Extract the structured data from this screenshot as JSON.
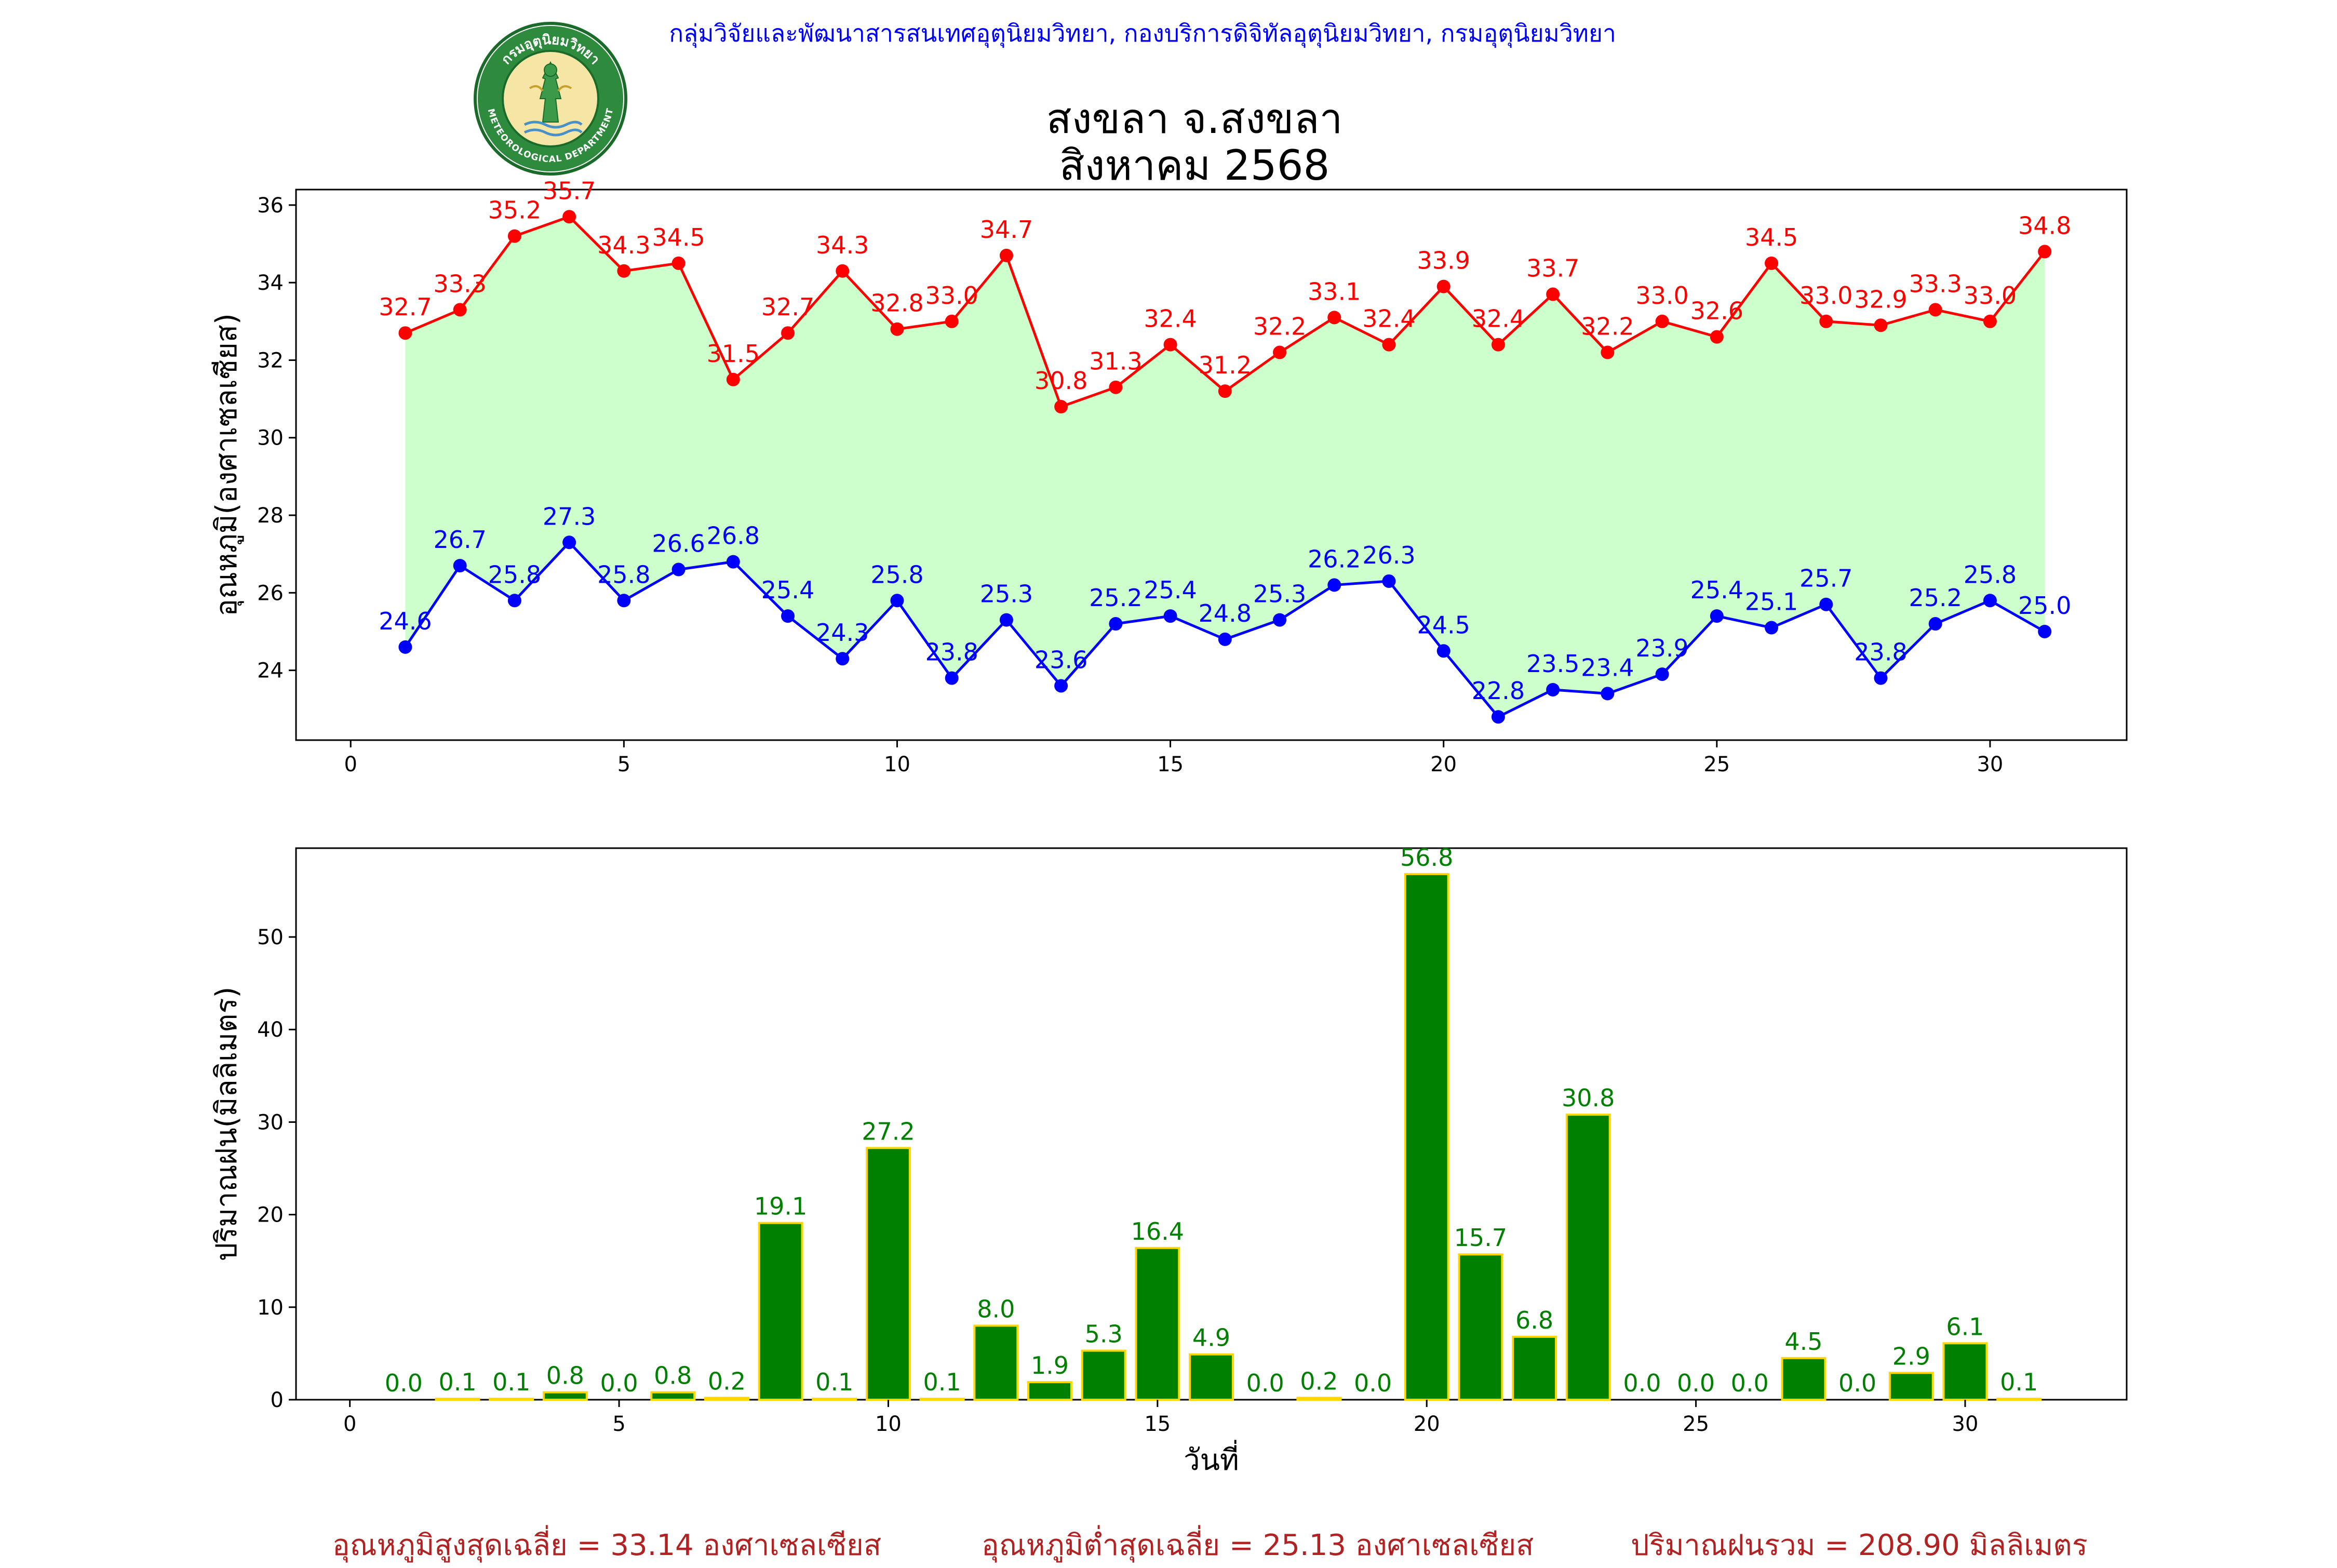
{
  "header": {
    "org": "กลุ่มวิจัยและพัฒนาสารสนเทศอุตุนิยมวิทยา, กองบริการดิจิทัลอุตุนิยมวิทยา, กรมอุตุนิยมวิทยา",
    "logo_text_top": "กรมอุตุนิยมวิทยา",
    "logo_text_bottom": "METEOROLOGICAL DEPARTMENT"
  },
  "title": {
    "line1": "สงขลา จ.สงขลา",
    "line2": "สิงหาคม 2568"
  },
  "colors": {
    "max_line": "#ff0000",
    "min_line": "#0000ff",
    "fill": "#ccffcc",
    "bar_fill": "#008000",
    "bar_edge": "#ffd700",
    "bar_label": "#008000",
    "footer": "#b22222"
  },
  "chart_data": [
    {
      "type": "line",
      "ylabel": "อุณหภูมิ(องศาเซลเซียส)",
      "xlim": [
        -1,
        32.5
      ],
      "ylim": [
        22.2,
        36.4
      ],
      "x_ticks": [
        0,
        5,
        10,
        15,
        20,
        25,
        30
      ],
      "y_ticks": [
        24,
        26,
        28,
        30,
        32,
        34,
        36
      ],
      "x": [
        1,
        2,
        3,
        4,
        5,
        6,
        7,
        8,
        9,
        10,
        11,
        12,
        13,
        14,
        15,
        16,
        17,
        18,
        19,
        20,
        21,
        22,
        23,
        24,
        25,
        26,
        27,
        28,
        29,
        30,
        31
      ],
      "series": [
        {
          "values": [
            32.7,
            33.3,
            35.2,
            35.7,
            34.3,
            34.5,
            31.5,
            32.7,
            34.3,
            32.8,
            33.0,
            34.7,
            30.8,
            31.3,
            32.4,
            31.2,
            32.2,
            33.1,
            32.4,
            33.9,
            32.4,
            33.7,
            32.2,
            33.0,
            32.6,
            34.5,
            33.0,
            32.9,
            33.3,
            33.0,
            34.8
          ]
        },
        {
          "values": [
            24.6,
            26.7,
            25.8,
            27.3,
            25.8,
            26.6,
            26.8,
            25.4,
            24.3,
            25.8,
            23.8,
            25.3,
            23.6,
            25.2,
            25.4,
            24.8,
            25.3,
            26.2,
            26.3,
            24.5,
            22.8,
            23.5,
            23.4,
            23.9,
            25.4,
            25.1,
            25.7,
            23.8,
            25.2,
            25.8,
            25.0
          ]
        }
      ]
    },
    {
      "type": "bar",
      "ylabel": "ปริมาณฝน(มิลลิเมตร)",
      "xlabel": "วันที่",
      "xlim": [
        -1,
        33
      ],
      "ylim": [
        0,
        59.6
      ],
      "x_ticks": [
        0,
        5,
        10,
        15,
        20,
        25,
        30
      ],
      "y_ticks": [
        0,
        10,
        20,
        30,
        40,
        50
      ],
      "x": [
        1,
        2,
        3,
        4,
        5,
        6,
        7,
        8,
        9,
        10,
        11,
        12,
        13,
        14,
        15,
        16,
        17,
        18,
        19,
        20,
        21,
        22,
        23,
        24,
        25,
        26,
        27,
        28,
        29,
        30,
        31
      ],
      "values": [
        0.0,
        0.1,
        0.1,
        0.8,
        0.0,
        0.8,
        0.2,
        19.1,
        0.1,
        27.2,
        0.1,
        8.0,
        1.9,
        5.3,
        16.4,
        4.9,
        0.0,
        0.2,
        0.0,
        56.8,
        15.7,
        6.8,
        30.8,
        0.0,
        0.0,
        0.0,
        4.5,
        0.0,
        2.9,
        6.1,
        0.1
      ]
    }
  ],
  "footer": {
    "avg_max": "อุณหภูมิสูงสุดเฉลี่ย = 33.14 องศาเซลเซียส",
    "avg_min": "อุณหภูมิต่ำสุดเฉลี่ย = 25.13 องศาเซลเซียส",
    "total_rain": "ปริมาณฝนรวม = 208.90 มิลลิเมตร"
  }
}
